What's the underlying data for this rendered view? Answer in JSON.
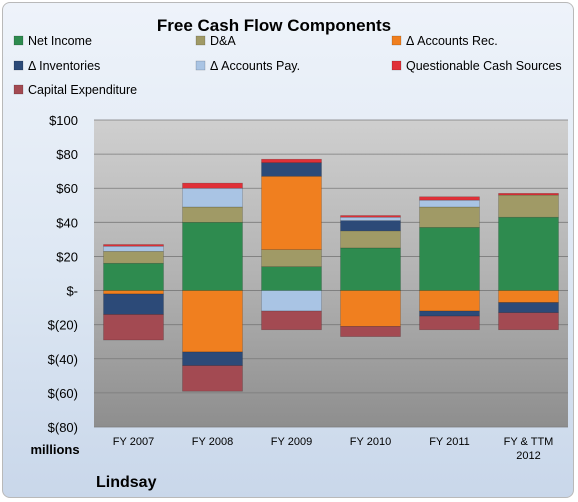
{
  "chart_data": {
    "type": "bar",
    "stacked": true,
    "title": "Free Cash Flow Components",
    "categories": [
      "FY 2007",
      "FY 2008",
      "FY 2009",
      "FY 2010",
      "FY 2011",
      "FY & TTM 2012"
    ],
    "ylim": [
      -80,
      100
    ],
    "yticks": [
      100,
      80,
      60,
      40,
      20,
      0,
      -20,
      -40,
      -60,
      -80
    ],
    "ytick_labels": [
      "$100",
      "$80",
      "$60",
      "$40",
      "$20",
      "$-",
      "$(20)",
      "$(40)",
      "$(60)",
      "$(80)"
    ],
    "ylabel": "millions",
    "grid": true,
    "legend_position": "top",
    "series": [
      {
        "name": "Net Income",
        "color": "#2e8b4f",
        "values": [
          16,
          40,
          14,
          25,
          37,
          43
        ]
      },
      {
        "name": "D&A",
        "color": "#a09a66",
        "values": [
          7,
          9,
          10,
          10,
          12,
          13
        ]
      },
      {
        "name": "Δ Accounts Rec.",
        "color": "#f07f1f",
        "values": [
          -2,
          -36,
          43,
          -21,
          -12,
          -7
        ]
      },
      {
        "name": "Δ Inventories",
        "color": "#2c4a78",
        "values": [
          -12,
          -8,
          8,
          6,
          -3,
          -6
        ]
      },
      {
        "name": "Δ Accounts Pay.",
        "color": "#a9c4e4",
        "values": [
          3,
          11,
          -12,
          2,
          4,
          0
        ]
      },
      {
        "name": "Questionable Cash Sources",
        "color": "#e03038",
        "values": [
          1,
          3,
          2,
          1,
          2,
          1
        ]
      },
      {
        "name": "Capital Expenditure",
        "color": "#a34a52",
        "values": [
          -15,
          -15,
          -11,
          -6,
          -8,
          -10
        ]
      }
    ]
  },
  "footer": {
    "company": "Lindsay"
  }
}
